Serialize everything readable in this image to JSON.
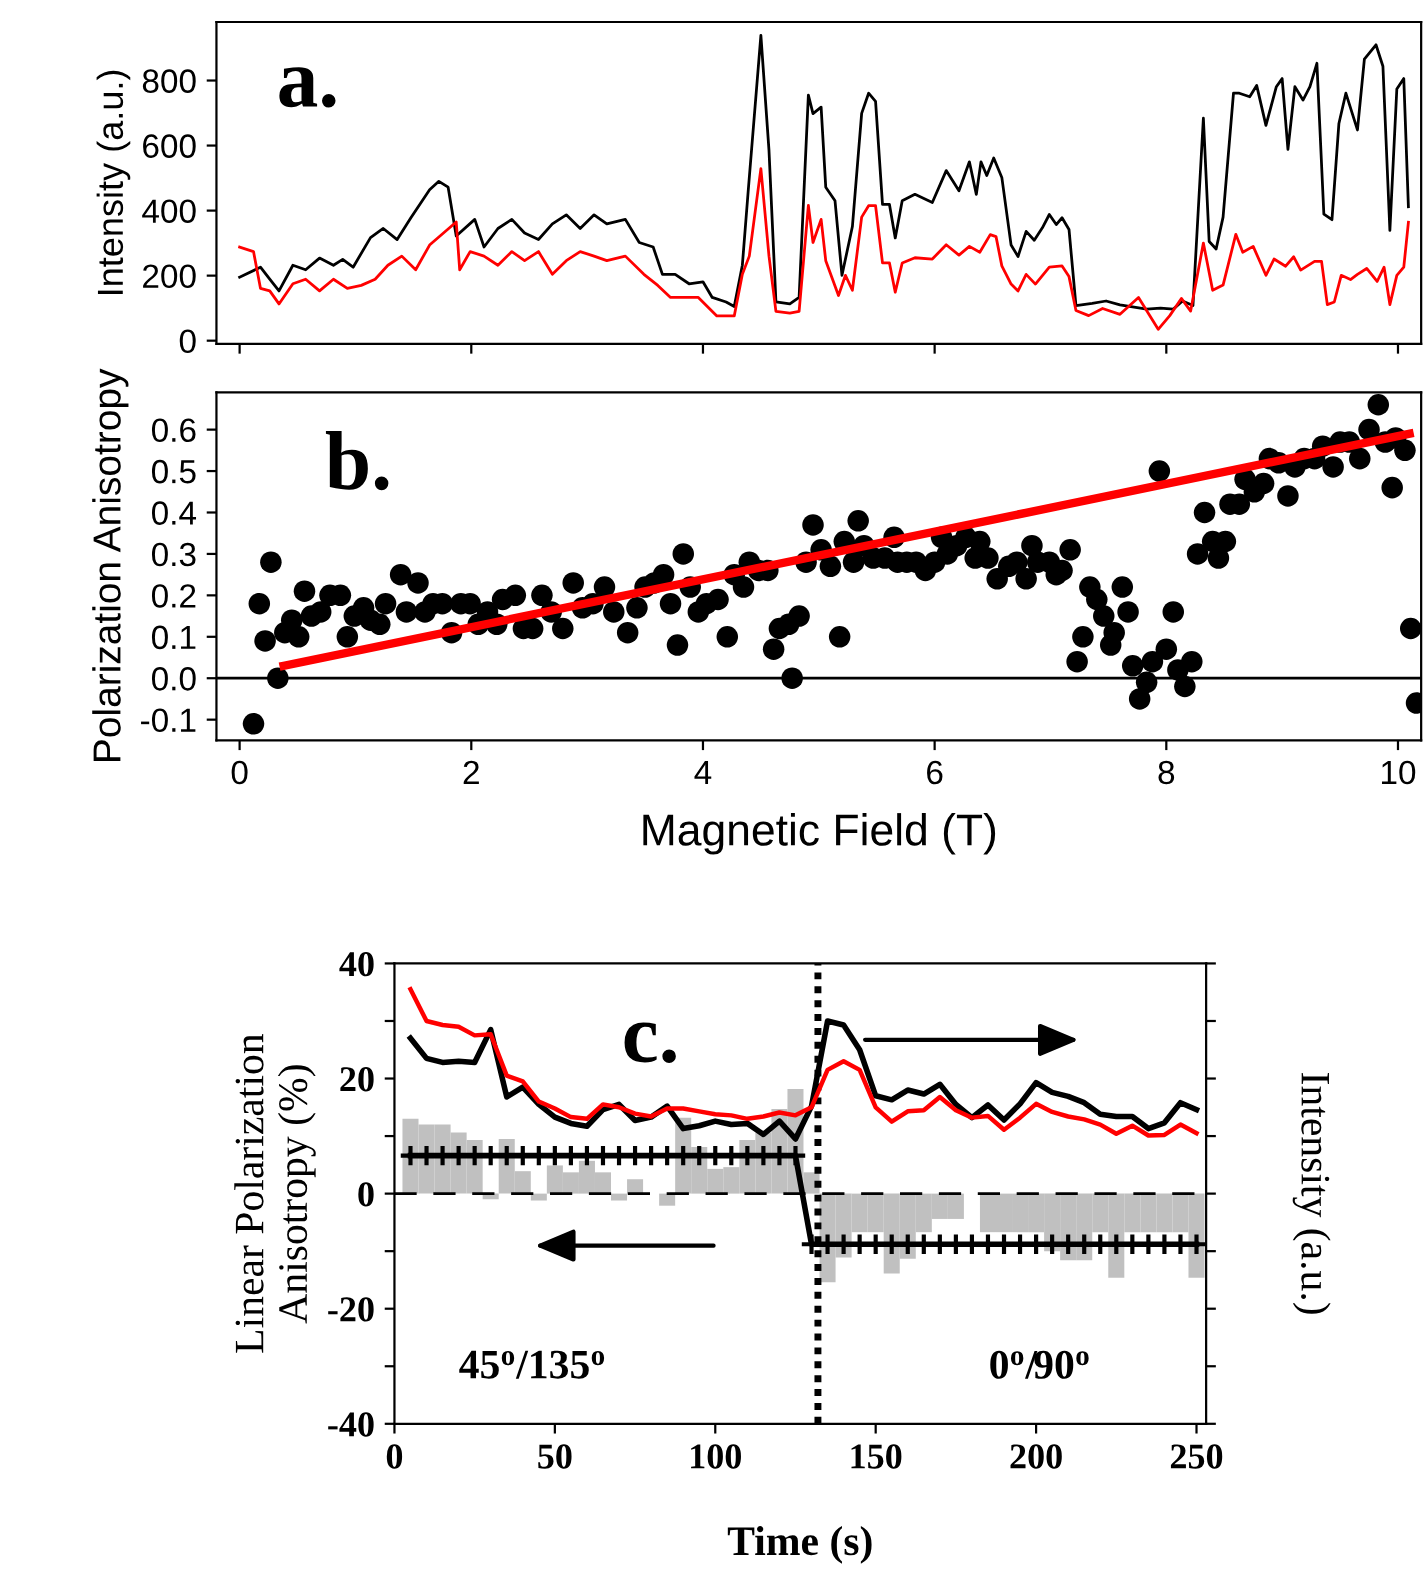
{
  "chart_data": [
    {
      "type": "line",
      "ylabel": "Intensity (a.u.)",
      "annotations": [
        "a."
      ],
      "xlim": [
        -0.2,
        10.2
      ],
      "ylim": [
        -10,
        980
      ],
      "xticks": [
        0,
        2,
        4,
        6,
        8,
        10
      ],
      "yticks": [
        0,
        200,
        400,
        600,
        800
      ],
      "tick_labels": "y",
      "series": [
        {
          "color": "#000000",
          "x": [
            0,
            0.18,
            0.26,
            0.34,
            0.46,
            0.57,
            0.69,
            0.81,
            0.89,
            0.98,
            1.13,
            1.24,
            1.36,
            1.48,
            1.64,
            1.72,
            1.8,
            1.87,
            2.03,
            2.11,
            2.23,
            2.35,
            2.46,
            2.58,
            2.7,
            2.82,
            2.94,
            3.06,
            3.17,
            3.33,
            3.45,
            3.57,
            3.65,
            3.76,
            3.88,
            4.0,
            4.08,
            4.2,
            4.27,
            4.34,
            4.39,
            4.5,
            4.57,
            4.63,
            4.75,
            4.83,
            4.91,
            4.95,
            5.02,
            5.06,
            5.14,
            5.2,
            5.29,
            5.37,
            5.43,
            5.49,
            5.55,
            5.61,
            5.66,
            5.72,
            5.83,
            5.98,
            6.1,
            6.21,
            6.3,
            6.36,
            6.4,
            6.45,
            6.51,
            6.58,
            6.66,
            6.72,
            6.79,
            6.86,
            6.93,
            6.99,
            7.05,
            7.1,
            7.16,
            7.22,
            7.36,
            7.48,
            7.6,
            7.83,
            7.95,
            8.06,
            8.14,
            8.23,
            8.32,
            8.37,
            8.43,
            8.49,
            8.58,
            8.63,
            8.72,
            8.78,
            8.86,
            8.95,
            9.0,
            9.05,
            9.11,
            9.18,
            9.24,
            9.3,
            9.36,
            9.43,
            9.49,
            9.55,
            9.65,
            9.71,
            9.81,
            9.87,
            9.93,
            9.99,
            10.05,
            10.09
          ],
          "values": [
            195,
            226,
            189,
            153,
            232,
            218,
            254,
            232,
            250,
            226,
            317,
            345,
            311,
            379,
            464,
            490,
            472,
            322,
            373,
            288,
            345,
            373,
            331,
            311,
            359,
            387,
            345,
            387,
            359,
            373,
            302,
            288,
            204,
            204,
            175,
            181,
            133,
            119,
            105,
            232,
            458,
            939,
            585,
            119,
            113,
            133,
            755,
            698,
            718,
            472,
            430,
            201,
            351,
            699,
            761,
            736,
            419,
            419,
            316,
            430,
            450,
            425,
            523,
            461,
            550,
            450,
            550,
            508,
            562,
            502,
            294,
            259,
            336,
            309,
            347,
            388,
            357,
            378,
            342,
            108,
            115,
            122,
            110,
            97,
            100,
            97,
            122,
            108,
            684,
            305,
            282,
            380,
            761,
            761,
            750,
            785,
            662,
            781,
            806,
            588,
            781,
            740,
            781,
            853,
            389,
            372,
            668,
            761,
            648,
            866,
            910,
            844,
            339,
            774,
            806,
            412
          ]
        },
        {
          "color": "#ff0000",
          "x": [
            0,
            0.12,
            0.18,
            0.26,
            0.34,
            0.46,
            0.57,
            0.69,
            0.81,
            0.93,
            1.05,
            1.17,
            1.28,
            1.4,
            1.52,
            1.64,
            1.76,
            1.87,
            1.9,
            1.99,
            2.11,
            2.23,
            2.35,
            2.46,
            2.58,
            2.7,
            2.82,
            2.94,
            3.06,
            3.17,
            3.33,
            3.49,
            3.61,
            3.72,
            3.84,
            3.96,
            4.12,
            4.27,
            4.34,
            4.4,
            4.5,
            4.57,
            4.63,
            4.75,
            4.83,
            4.91,
            4.95,
            5.02,
            5.06,
            5.17,
            5.23,
            5.29,
            5.37,
            5.43,
            5.49,
            5.55,
            5.61,
            5.66,
            5.72,
            5.83,
            5.98,
            6.1,
            6.21,
            6.3,
            6.39,
            6.48,
            6.53,
            6.58,
            6.66,
            6.72,
            6.79,
            6.87,
            6.99,
            7.1,
            7.16,
            7.22,
            7.33,
            7.45,
            7.6,
            7.76,
            7.93,
            8.03,
            8.13,
            8.21,
            8.32,
            8.4,
            8.49,
            8.6,
            8.66,
            8.75,
            8.86,
            8.93,
            9.03,
            9.1,
            9.16,
            9.28,
            9.34,
            9.39,
            9.45,
            9.51,
            9.59,
            9.65,
            9.73,
            9.82,
            9.88,
            9.93,
            9.99,
            10.05,
            10.09
          ],
          "values": [
            288,
            274,
            161,
            153,
            113,
            175,
            189,
            153,
            189,
            161,
            170,
            189,
            232,
            260,
            218,
            294,
            331,
            365,
            218,
            274,
            260,
            232,
            274,
            246,
            274,
            204,
            246,
            274,
            260,
            246,
            260,
            204,
            170,
            133,
            133,
            133,
            76,
            76,
            204,
            260,
            529,
            260,
            90,
            85,
            90,
            416,
            302,
            373,
            246,
            139,
            201,
            155,
            380,
            415,
            415,
            239,
            239,
            149,
            239,
            255,
            251,
            295,
            263,
            290,
            272,
            326,
            320,
            230,
            174,
            153,
            204,
            174,
            226,
            230,
            197,
            93,
            77,
            99,
            81,
            133,
            35,
            77,
            130,
            91,
            300,
            155,
            171,
            327,
            272,
            290,
            201,
            251,
            229,
            258,
            217,
            244,
            244,
            111,
            119,
            201,
            188,
            204,
            222,
            182,
            226,
            111,
            201,
            226,
            364
          ]
        }
      ]
    },
    {
      "type": "scatter",
      "xlabel": "Magnetic Field (T)",
      "ylabel": "Polarization Anisotropy",
      "annotations": [
        "b."
      ],
      "xlim": [
        -0.2,
        10.2
      ],
      "ylim": [
        -0.15,
        0.69
      ],
      "xticks": [
        0,
        2,
        4,
        6,
        8,
        10
      ],
      "yticks": [
        -0.1,
        {
          "value": 0,
          "label": "0.0"
        },
        0.1,
        0.2,
        0.3,
        0.4,
        0.5,
        0.6
      ],
      "marker": "circle",
      "ref_lines": [
        {
          "axis": "y",
          "value": 0,
          "color": "#000000",
          "line_style": "solid"
        }
      ],
      "series": [
        {
          "color": "#000000",
          "x": [
            0.12,
            0.17,
            0.22,
            0.27,
            0.33,
            0.39,
            0.45,
            0.51,
            0.56,
            0.62,
            0.7,
            0.78,
            0.87,
            0.93,
            0.99,
            1.07,
            1.13,
            1.21,
            1.26,
            1.39,
            1.44,
            1.54,
            1.6,
            1.67,
            1.75,
            1.83,
            1.91,
            1.99,
            2.06,
            2.14,
            2.22,
            2.27,
            2.38,
            2.45,
            2.53,
            2.61,
            2.69,
            2.79,
            2.88,
            2.96,
            3.05,
            3.15,
            3.23,
            3.35,
            3.43,
            3.5,
            3.58,
            3.66,
            3.72,
            3.78,
            3.83,
            3.89,
            3.96,
            4.03,
            4.13,
            4.21,
            4.27,
            4.35,
            4.4,
            4.48,
            4.56,
            4.61,
            4.66,
            4.74,
            4.77,
            4.83,
            4.89,
            4.95,
            5.02,
            5.1,
            5.18,
            5.22,
            5.3,
            5.34,
            5.39,
            5.47,
            5.57,
            5.65,
            5.68,
            5.76,
            5.84,
            5.92,
            6.0,
            6.06,
            6.11,
            6.19,
            6.27,
            6.35,
            6.39,
            6.46,
            6.54,
            6.64,
            6.71,
            6.79,
            6.84,
            6.89,
            6.99,
            7.05,
            7.1,
            7.17,
            7.23,
            7.28,
            7.34,
            7.4,
            7.46,
            7.52,
            7.55,
            7.62,
            7.67,
            7.71,
            7.77,
            7.83,
            7.88,
            7.94,
            8.0,
            8.06,
            8.1,
            8.16,
            8.22,
            8.27,
            8.33,
            8.4,
            8.45,
            8.51,
            8.55,
            8.63,
            8.68,
            8.76,
            8.84,
            8.89,
            8.97,
            9.05,
            9.11,
            9.19,
            9.28,
            9.35,
            9.44,
            9.5,
            9.58,
            9.67,
            9.75,
            9.83,
            9.89,
            9.95,
            9.98,
            10.06,
            10.11,
            10.16
          ],
          "values": [
            -0.11,
            0.18,
            0.09,
            0.28,
            0.0,
            0.11,
            0.14,
            0.1,
            0.21,
            0.15,
            0.16,
            0.2,
            0.2,
            0.1,
            0.15,
            0.17,
            0.14,
            0.13,
            0.18,
            0.25,
            0.16,
            0.23,
            0.16,
            0.18,
            0.18,
            0.11,
            0.18,
            0.18,
            0.13,
            0.16,
            0.13,
            0.19,
            0.2,
            0.12,
            0.12,
            0.2,
            0.16,
            0.12,
            0.23,
            0.17,
            0.18,
            0.22,
            0.16,
            0.11,
            0.17,
            0.22,
            0.23,
            0.25,
            0.18,
            0.08,
            0.3,
            0.22,
            0.16,
            0.18,
            0.19,
            0.1,
            0.25,
            0.22,
            0.28,
            0.26,
            0.26,
            0.07,
            0.12,
            0.13,
            0.0,
            0.15,
            0.28,
            0.37,
            0.31,
            0.27,
            0.1,
            0.33,
            0.28,
            0.38,
            0.32,
            0.29,
            0.29,
            0.34,
            0.28,
            0.28,
            0.28,
            0.26,
            0.28,
            0.34,
            0.3,
            0.32,
            0.34,
            0.29,
            0.33,
            0.29,
            0.24,
            0.27,
            0.28,
            0.24,
            0.32,
            0.28,
            0.28,
            0.25,
            0.26,
            0.31,
            0.04,
            0.1,
            0.22,
            0.19,
            0.15,
            0.08,
            0.11,
            0.22,
            0.16,
            0.03,
            -0.05,
            -0.01,
            0.04,
            0.5,
            0.07,
            0.16,
            0.02,
            -0.02,
            0.04,
            0.3,
            0.4,
            0.33,
            0.29,
            0.33,
            0.42,
            0.42,
            0.48,
            0.45,
            0.47,
            0.53,
            0.52,
            0.44,
            0.51,
            0.53,
            0.53,
            0.56,
            0.51,
            0.57,
            0.57,
            0.53,
            0.6,
            0.66,
            0.57,
            0.46,
            0.58,
            0.55,
            0.12,
            -0.06
          ]
        },
        {
          "type": "line",
          "color": "#ff0000",
          "marker": "none",
          "x": [
            0.38,
            10.1
          ],
          "values": [
            0.03,
            0.59
          ]
        }
      ]
    },
    {
      "type": "line",
      "xlabel": "Time (s)",
      "ylabel": "Linear Polarization\nAnisotropy (%)",
      "y2label": "Intensity (a.u.)",
      "annotations": [
        "c.",
        "45$^{o}$/135$^{o}$",
        "0$^{o}$/90$^{o}$"
      ],
      "x": [
        5,
        10,
        15,
        20,
        25,
        30,
        35,
        40,
        45,
        50,
        55,
        60,
        65,
        70,
        75,
        80,
        85,
        90,
        95,
        100,
        105,
        110,
        115,
        120,
        125,
        130,
        135,
        140,
        145,
        150,
        155,
        160,
        165,
        170,
        175,
        180,
        185,
        190,
        195,
        200,
        205,
        210,
        215,
        220,
        225,
        230,
        235,
        240,
        245,
        250
      ],
      "xlim": [
        0,
        253
      ],
      "ylim": [
        -40,
        40
      ],
      "xticks": [
        0,
        50,
        100,
        150,
        200,
        250
      ],
      "yticks": [
        -40,
        {
          "value": -30,
          "label": null
        },
        -20,
        {
          "value": -10,
          "label": null
        },
        0,
        {
          "value": 10,
          "label": null
        },
        20,
        {
          "value": 30,
          "label": null
        },
        40
      ],
      "ref_lines": [
        {
          "axis": "x",
          "value": 132,
          "color": "#000000",
          "line_style": "dotted"
        },
        {
          "axis": "y",
          "value": 0,
          "color": "#000000",
          "line_style": "dashed"
        }
      ],
      "series": [
        {
          "type": "bar",
          "color": "#c0c0c0",
          "values": [
            13,
            12,
            12,
            10.6,
            9.3,
            -1,
            9.5,
            3.9,
            -1.2,
            4.9,
            3.7,
            5.7,
            3.7,
            -1.2,
            2.5,
            0,
            -2.1,
            13.2,
            8.1,
            4.3,
            4.6,
            9.3,
            10.6,
            14.7,
            18.2,
            3.7,
            -15.4,
            -11.1,
            -6.7,
            -6.7,
            -13.9,
            -11.3,
            -6.7,
            -4.4,
            -4.4,
            0,
            -6.7,
            -6.7,
            -6.7,
            -6.7,
            -10,
            -11.6,
            -11.6,
            -6.7,
            -14.6,
            -6.7,
            -6.7,
            -6.7,
            -6.7,
            -14.6
          ]
        },
        {
          "color": "#000000",
          "values": [
            27,
            23.5,
            22.8,
            23,
            22.8,
            28.5,
            16.8,
            18.5,
            15.5,
            13.3,
            12.2,
            11.7,
            14.6,
            15.5,
            12.7,
            13.3,
            15.2,
            11.3,
            11.8,
            12.6,
            12,
            12.2,
            10.3,
            12.6,
            9.5,
            15.2,
            30,
            29.3,
            25,
            17,
            16.3,
            18,
            17.3,
            19,
            15.5,
            13.2,
            15.4,
            12.8,
            15.6,
            19.3,
            17.6,
            16.9,
            15.8,
            13.8,
            13.4,
            13.4,
            11.3,
            12.3,
            15.8,
            14.6
          ]
        },
        {
          "color": "#ff0000",
          "values": [
            35.5,
            30,
            29.3,
            29,
            27.5,
            27.7,
            20.5,
            19.5,
            16,
            14.8,
            13.3,
            13,
            15.5,
            15,
            13.9,
            13.4,
            14.8,
            14.8,
            14.3,
            13.8,
            13.6,
            13,
            13.4,
            14.1,
            13.6,
            15,
            21.5,
            23,
            21.5,
            15,
            12.5,
            14.3,
            14.5,
            16.8,
            14.5,
            13.2,
            13.5,
            11.1,
            13.2,
            15.6,
            14.2,
            13.4,
            12.9,
            12,
            10.4,
            11.8,
            10.1,
            10.2,
            12,
            10.5
          ]
        },
        {
          "color": "#000000",
          "marker": "cross",
          "values": [
            6.6,
            6.6,
            6.6,
            6.6,
            6.6,
            6.6,
            6.6,
            6.6,
            6.6,
            6.6,
            6.6,
            6.6,
            6.6,
            6.6,
            6.6,
            6.6,
            6.6,
            6.6,
            6.6,
            6.6,
            6.6,
            6.6,
            6.6,
            6.6,
            6.6,
            -8.8,
            -8.8,
            -8.8,
            -8.8,
            -8.8,
            -8.8,
            -8.8,
            -8.8,
            -8.8,
            -8.8,
            -8.8,
            -8.8,
            -8.8,
            -8.8,
            -8.8,
            -8.8,
            -8.8,
            -8.8,
            -8.8,
            -8.8,
            -8.8,
            -8.8,
            -8.8,
            -8.8,
            -8.8
          ]
        }
      ]
    }
  ]
}
